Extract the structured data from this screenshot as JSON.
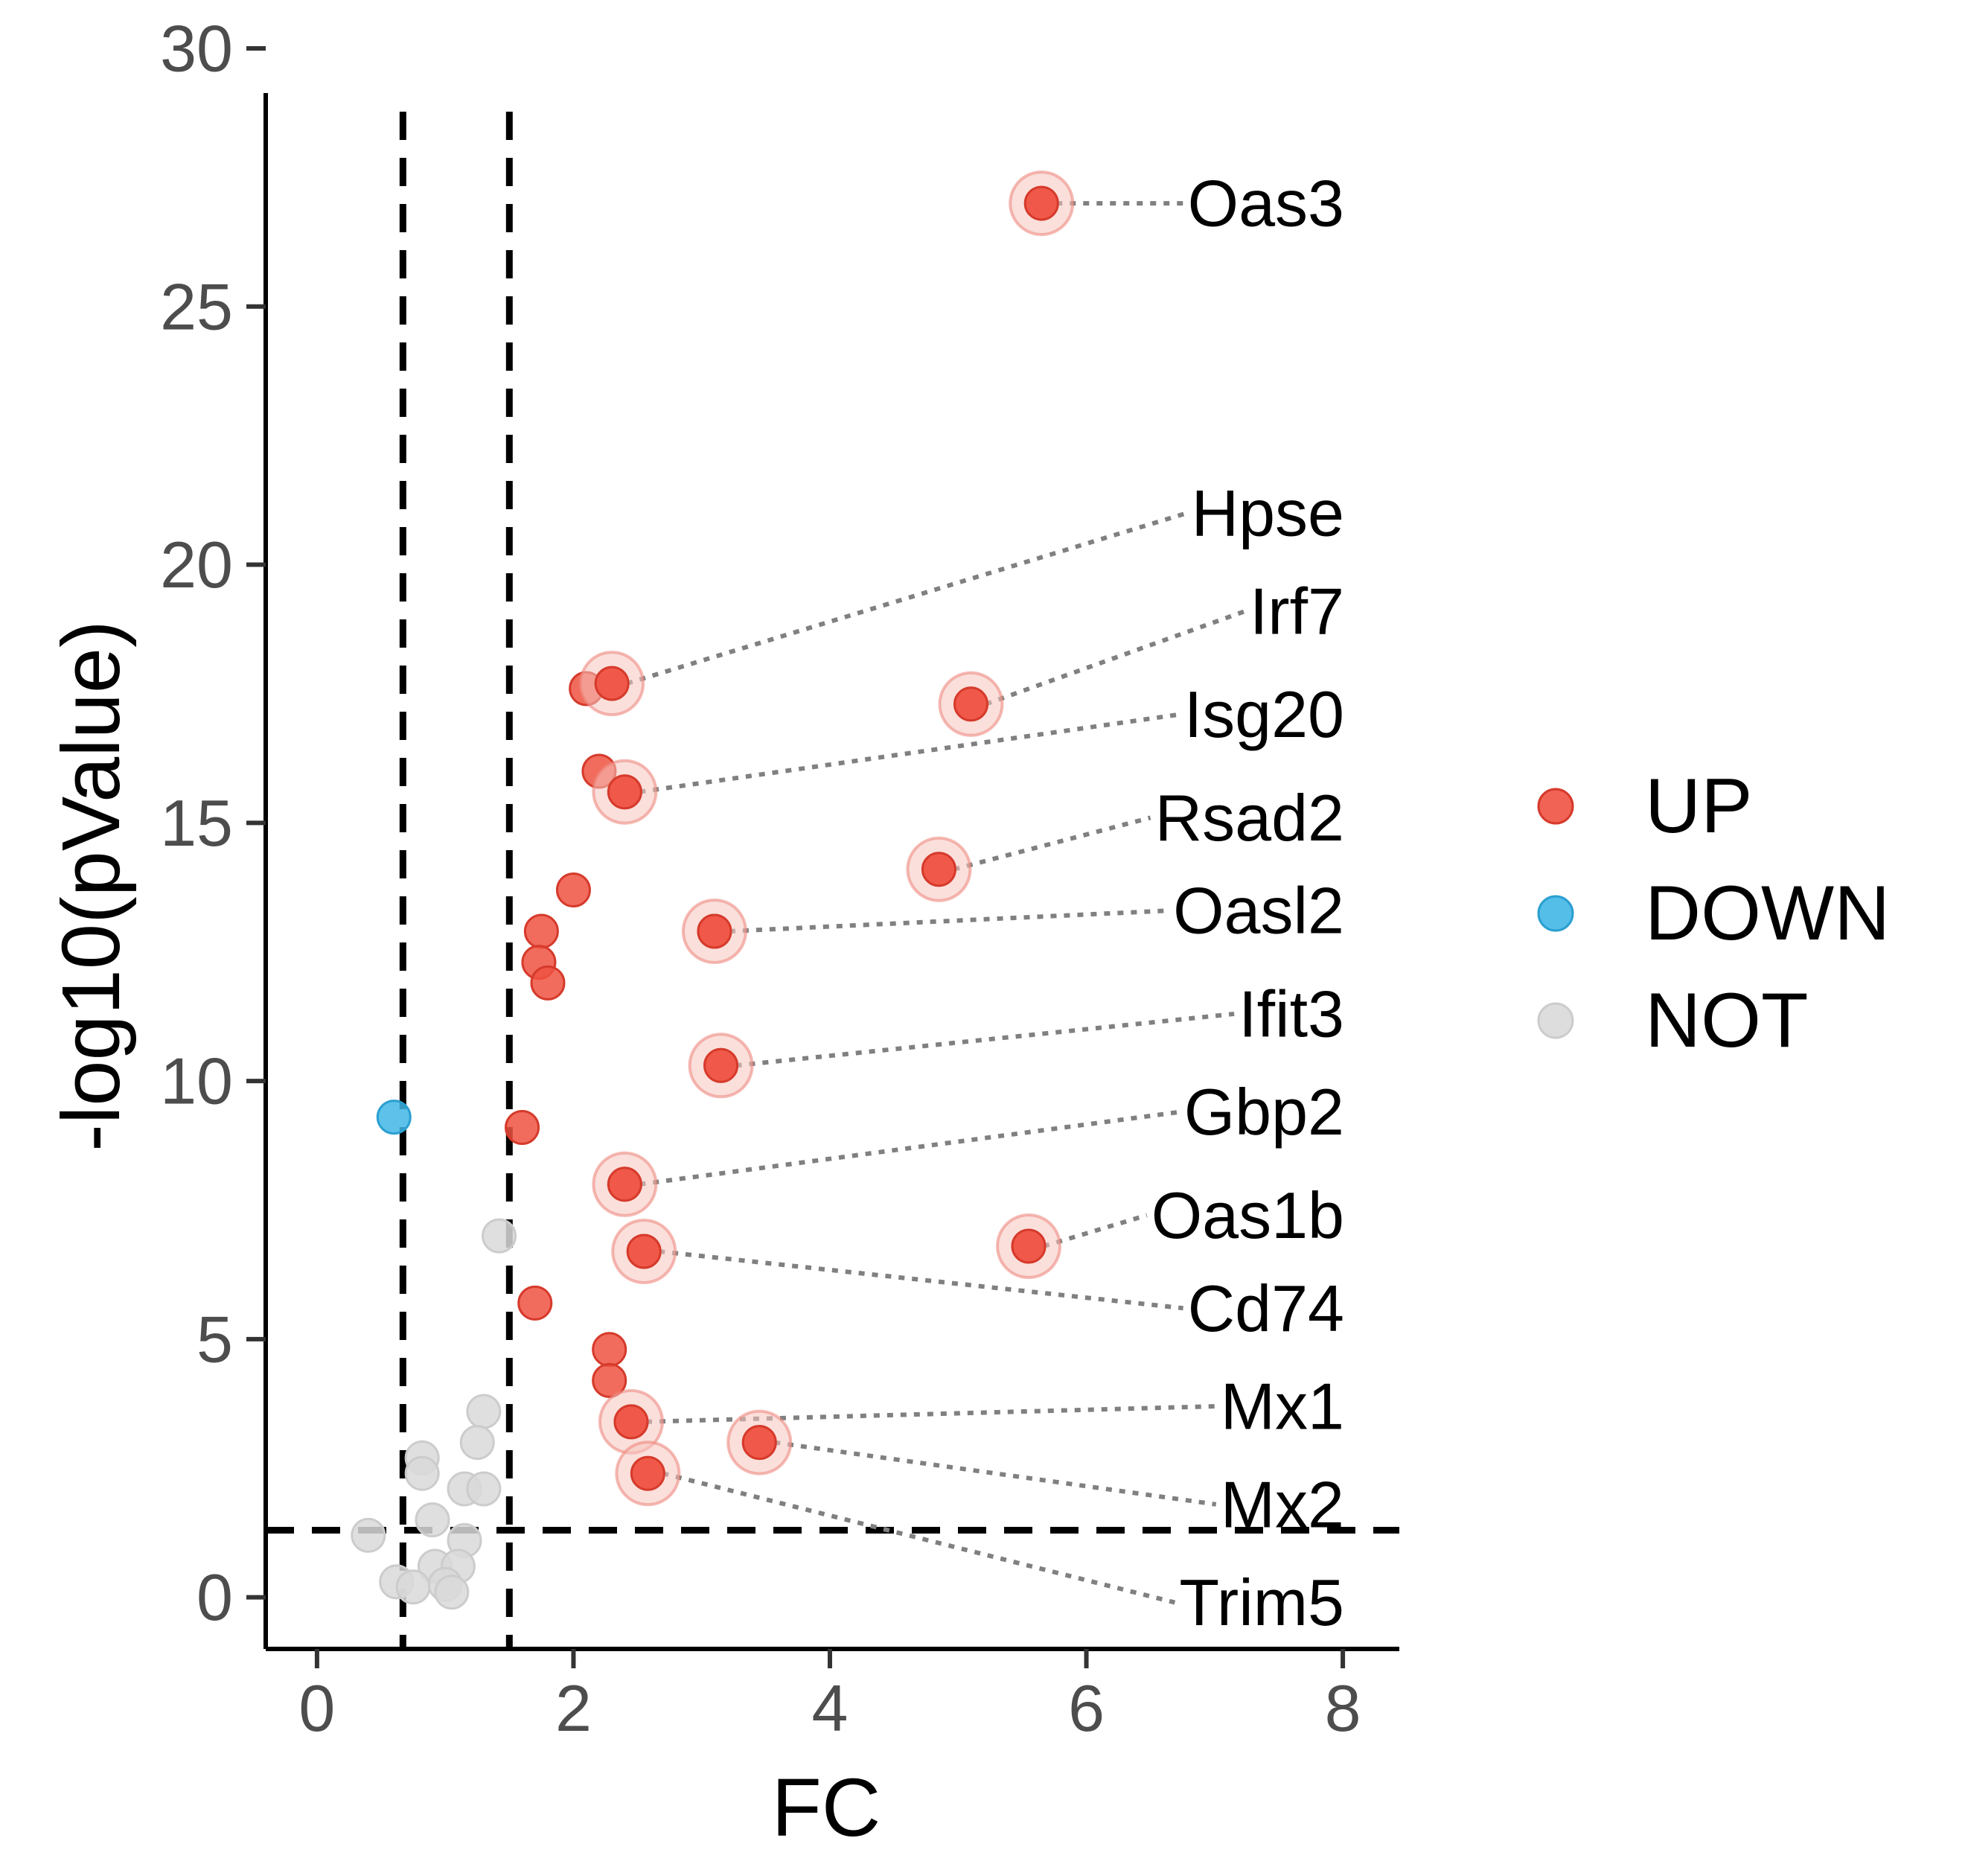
{
  "chart_data": {
    "type": "scatter",
    "title": "",
    "xlabel": "FC",
    "ylabel": "-log10(pValue)",
    "xlim": [
      -0.4,
      8.4
    ],
    "ylim": [
      -1,
      30
    ],
    "xticks": [
      0,
      2,
      4,
      6,
      8
    ],
    "yticks": [
      0,
      5,
      10,
      15,
      20,
      25,
      30
    ],
    "grid": false,
    "legend": {
      "position": "right",
      "title": ""
    },
    "thresholds": {
      "fc": [
        0.67,
        1.5
      ],
      "neglog10p": 1.3
    },
    "colors": {
      "UP": "#ef5241",
      "DOWN": "#41b6e6",
      "NOT": "#d9d9d9",
      "halo": "#f6c4be"
    },
    "series": [
      {
        "name": "UP",
        "points": [
          [
            5.65,
            27.0
          ],
          [
            2.3,
            17.7
          ],
          [
            2.1,
            17.6
          ],
          [
            5.1,
            17.3
          ],
          [
            2.2,
            16.0
          ],
          [
            2.4,
            15.6
          ],
          [
            4.85,
            14.1
          ],
          [
            2.0,
            13.7
          ],
          [
            3.1,
            12.9
          ],
          [
            1.75,
            12.9
          ],
          [
            1.73,
            12.3
          ],
          [
            1.8,
            11.9
          ],
          [
            3.15,
            10.3
          ],
          [
            1.6,
            9.1
          ],
          [
            2.4,
            8.0
          ],
          [
            5.55,
            6.8
          ],
          [
            2.55,
            6.7
          ],
          [
            1.7,
            5.7
          ],
          [
            2.28,
            4.8
          ],
          [
            2.28,
            4.2
          ],
          [
            2.45,
            3.4
          ],
          [
            3.45,
            3.0
          ],
          [
            2.58,
            2.4
          ]
        ]
      },
      {
        "name": "DOWN",
        "points": [
          [
            0.6,
            9.3
          ]
        ]
      },
      {
        "name": "NOT",
        "points": [
          [
            1.42,
            7.0
          ],
          [
            1.3,
            3.6
          ],
          [
            1.25,
            3.0
          ],
          [
            0.82,
            2.7
          ],
          [
            0.82,
            2.4
          ],
          [
            1.15,
            2.1
          ],
          [
            1.3,
            2.1
          ],
          [
            0.9,
            1.5
          ],
          [
            0.4,
            1.2
          ],
          [
            1.15,
            1.1
          ],
          [
            0.92,
            0.6
          ],
          [
            1.1,
            0.6
          ],
          [
            0.62,
            0.3
          ],
          [
            0.75,
            0.2
          ],
          [
            1.0,
            0.25
          ],
          [
            1.05,
            0.1
          ]
        ]
      }
    ],
    "labels": [
      {
        "text": "Oas3",
        "x": 5.65,
        "y": 27.0,
        "label_y": 27.0
      },
      {
        "text": "Hpse",
        "x": 2.3,
        "y": 17.7,
        "label_y": 21.0
      },
      {
        "text": "Irf7",
        "x": 5.1,
        "y": 17.3,
        "label_y": 19.1
      },
      {
        "text": "Isg20",
        "x": 2.4,
        "y": 15.6,
        "label_y": 17.1
      },
      {
        "text": "Rsad2",
        "x": 4.85,
        "y": 14.1,
        "label_y": 15.1
      },
      {
        "text": "Oasl2",
        "x": 3.1,
        "y": 12.9,
        "label_y": 13.3
      },
      {
        "text": "Ifit3",
        "x": 3.15,
        "y": 10.3,
        "label_y": 11.3
      },
      {
        "text": "Gbp2",
        "x": 2.4,
        "y": 8.0,
        "label_y": 9.4
      },
      {
        "text": "Oas1b",
        "x": 5.55,
        "y": 6.8,
        "label_y": 7.4
      },
      {
        "text": "Cd74",
        "x": 2.55,
        "y": 6.7,
        "label_y": 5.6
      },
      {
        "text": "Mx1",
        "x": 2.45,
        "y": 3.4,
        "label_y": 3.7
      },
      {
        "text": "Mx2",
        "x": 3.45,
        "y": 3.0,
        "label_y": 1.8
      },
      {
        "text": "Trim5",
        "x": 2.58,
        "y": 2.4,
        "label_y": -0.1
      }
    ]
  }
}
